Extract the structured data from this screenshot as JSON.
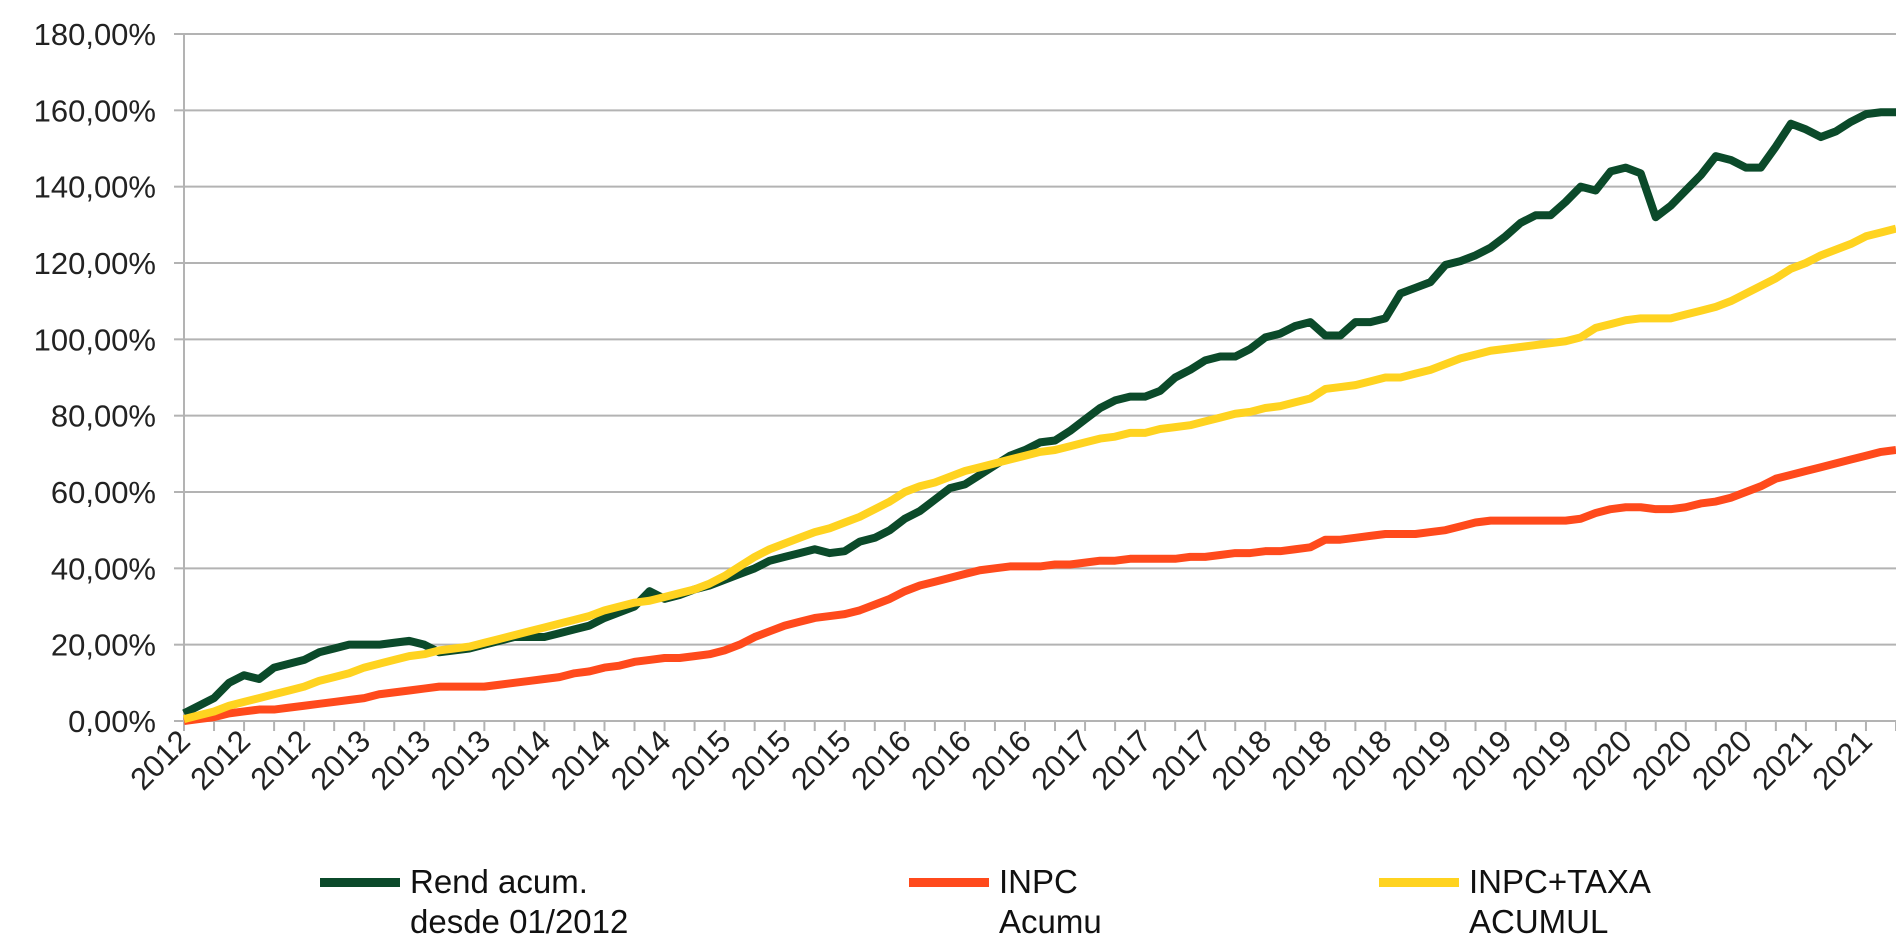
{
  "chart_data": {
    "type": "line",
    "categories": [
      "2012",
      null,
      null,
      null,
      "2012",
      null,
      null,
      null,
      "2012",
      null,
      null,
      null,
      "2013",
      null,
      null,
      null,
      "2013",
      null,
      null,
      null,
      "2013",
      null,
      null,
      null,
      "2014",
      null,
      null,
      null,
      "2014",
      null,
      null,
      null,
      "2014",
      null,
      null,
      null,
      "2015",
      null,
      null,
      null,
      "2015",
      null,
      null,
      null,
      "2015",
      null,
      null,
      null,
      "2016",
      null,
      null,
      null,
      "2016",
      null,
      null,
      null,
      "2016",
      null,
      null,
      null,
      "2017",
      null,
      null,
      null,
      "2017",
      null,
      null,
      null,
      "2017",
      null,
      null,
      null,
      "2018",
      null,
      null,
      null,
      "2018",
      null,
      null,
      null,
      "2018",
      null,
      null,
      null,
      "2019",
      null,
      null,
      null,
      "2019",
      null,
      null,
      null,
      "2019",
      null,
      null,
      null,
      "2020",
      null,
      null,
      null,
      "2020",
      null,
      null,
      null,
      "2020",
      null,
      null,
      null,
      "2021",
      null,
      null,
      null,
      "2021",
      null,
      null
    ],
    "series": [
      {
        "name": "Rend acum.\ndesde 01/2012",
        "color": "#0b4a2a",
        "values": [
          2,
          4,
          6,
          10,
          12,
          11,
          14,
          15,
          16,
          18,
          19,
          20,
          20,
          20,
          20.5,
          21,
          20,
          18,
          18.5,
          19,
          20,
          21,
          22,
          22,
          22,
          23,
          24,
          25,
          27,
          28.5,
          30,
          34,
          32,
          33,
          34.5,
          35.5,
          37,
          38.5,
          40,
          42,
          43,
          44,
          45,
          44,
          44.5,
          47,
          48,
          50,
          53,
          55,
          58,
          61,
          62,
          64.5,
          67,
          69.5,
          71,
          73,
          73.5,
          76,
          79,
          82,
          84,
          85,
          85,
          86.5,
          90,
          92,
          94.5,
          95.5,
          95.5,
          97.5,
          100.5,
          101.5,
          103.5,
          104.5,
          101,
          101,
          104.5,
          104.5,
          105.5,
          112,
          113.5,
          115,
          119.5,
          120.5,
          122,
          124,
          127,
          130.5,
          132.5,
          132.5,
          136,
          140,
          139,
          144,
          145,
          143.5,
          132,
          135,
          139,
          143,
          148,
          147,
          145,
          145,
          150.5,
          156.5,
          155,
          153,
          154.5,
          157,
          159,
          159.5,
          159.5
        ]
      },
      {
        "name": "INPC\nAcumu",
        "color": "#ff4a1c",
        "values": [
          0,
          0.5,
          1,
          2,
          2.5,
          3,
          3,
          3.5,
          4,
          4.5,
          5,
          5.5,
          6,
          7,
          7.5,
          8,
          8.5,
          9,
          9,
          9,
          9,
          9.5,
          10,
          10.5,
          11,
          11.5,
          12.5,
          13,
          14,
          14.5,
          15.5,
          16,
          16.5,
          16.5,
          17,
          17.5,
          18.5,
          20,
          22,
          23.5,
          25,
          26,
          27,
          27.5,
          28,
          29,
          30.5,
          32,
          34,
          35.5,
          36.5,
          37.5,
          38.5,
          39.5,
          40,
          40.5,
          40.5,
          40.5,
          41,
          41,
          41.5,
          42,
          42,
          42.5,
          42.5,
          42.5,
          42.5,
          43,
          43,
          43.5,
          44,
          44,
          44.5,
          44.5,
          45,
          45.5,
          47.5,
          47.5,
          48,
          48.5,
          49,
          49,
          49,
          49.5,
          50,
          51,
          52,
          52.5,
          52.5,
          52.5,
          52.5,
          52.5,
          52.5,
          53,
          54.5,
          55.5,
          56,
          56,
          55.5,
          55.5,
          56,
          57,
          57.5,
          58.5,
          60,
          61.5,
          63.5,
          64.5,
          65.5,
          66.5,
          67.5,
          68.5,
          69.5,
          70.5,
          71
        ]
      },
      {
        "name": "INPC+TAXA\nACUMUL",
        "color": "#ffd320",
        "values": [
          0.5,
          1.5,
          2.5,
          4,
          5,
          6,
          7,
          8,
          9,
          10.5,
          11.5,
          12.5,
          14,
          15,
          16,
          17,
          17.5,
          18.5,
          19,
          19.5,
          20.5,
          21.5,
          22.5,
          23.5,
          24.5,
          25.5,
          26.5,
          27.5,
          29,
          30,
          31,
          31.5,
          32.5,
          33.5,
          34.5,
          36,
          38,
          40.5,
          43,
          45,
          46.5,
          48,
          49.5,
          50.5,
          52,
          53.5,
          55.5,
          57.5,
          60,
          61.5,
          62.5,
          64,
          65.5,
          66.5,
          67.5,
          68.5,
          69.5,
          70.5,
          71,
          72,
          73,
          74,
          74.5,
          75.5,
          75.5,
          76.5,
          77,
          77.5,
          78.5,
          79.5,
          80.5,
          81,
          82,
          82.5,
          83.5,
          84.5,
          87,
          87.5,
          88,
          89,
          90,
          90,
          91,
          92,
          93.5,
          95,
          96,
          97,
          97.5,
          98,
          98.5,
          99,
          99.5,
          100.5,
          103,
          104,
          105,
          105.5,
          105.5,
          105.5,
          106.5,
          107.5,
          108.5,
          110,
          112,
          114,
          116,
          118.5,
          120,
          122,
          123.5,
          125,
          127,
          128,
          129
        ]
      }
    ],
    "ylim": [
      0,
      180
    ],
    "yticks": [
      {
        "value": 0,
        "label": "0,00%"
      },
      {
        "value": 20,
        "label": "20,00%"
      },
      {
        "value": 40,
        "label": "40,00%"
      },
      {
        "value": 60,
        "label": "60,00%"
      },
      {
        "value": 80,
        "label": "80,00%"
      },
      {
        "value": 100,
        "label": "100,00%"
      },
      {
        "value": 120,
        "label": "120,00%"
      },
      {
        "value": 140,
        "label": "140,00%"
      },
      {
        "value": 160,
        "label": "160,00%"
      },
      {
        "value": 180,
        "label": "180,00%"
      }
    ],
    "grid": true
  }
}
